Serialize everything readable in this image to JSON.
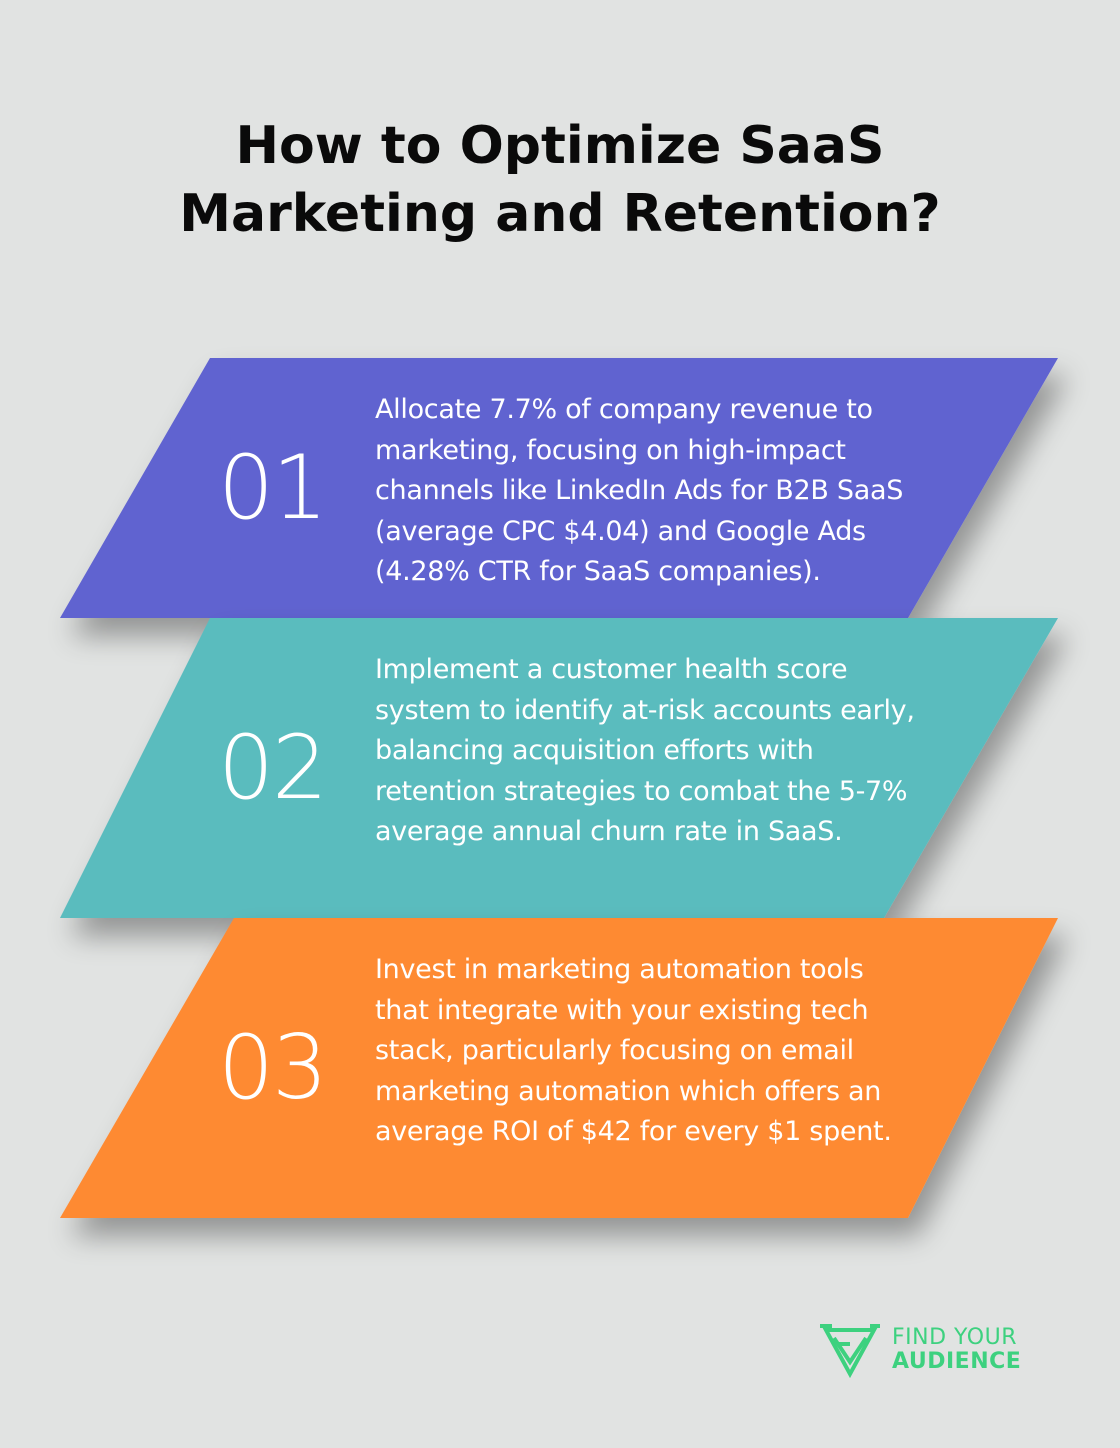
{
  "title": {
    "line1": "How to Optimize SaaS",
    "line2": "Marketing and Retention?"
  },
  "steps": [
    {
      "number": "01",
      "text": "Allocate 7.7% of company revenue to marketing, focusing on high-impact channels like LinkedIn Ads for B2B SaaS (average CPC $4.04) and Google Ads (4.28% CTR for SaaS companies).",
      "color": "#6063d0"
    },
    {
      "number": "02",
      "text": "Implement a customer health score system to identify at-risk accounts early, balancing acquisition efforts with retention strategies to combat the 5-7% average annual churn rate in SaaS.",
      "color": "#5abcbe"
    },
    {
      "number": "03",
      "text": "Invest in marketing automation tools that integrate with your existing tech stack, particularly focusing on email marketing automation which offers an average ROI of $42 for every $1 spent.",
      "color": "#fe8a33"
    }
  ],
  "logo": {
    "line1": "FIND YOUR",
    "line2": "AUDIENCE",
    "color": "#3dd17f"
  }
}
